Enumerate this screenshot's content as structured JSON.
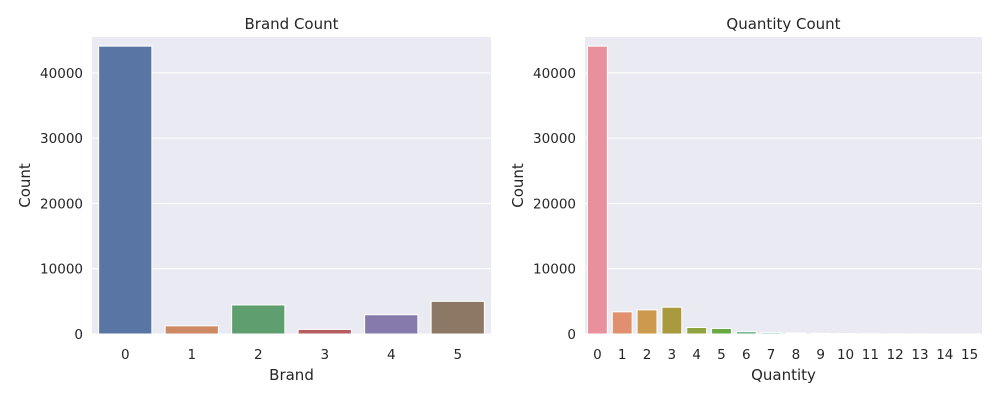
{
  "chart_data": [
    {
      "type": "bar",
      "title": "Brand Count",
      "xlabel": "Brand",
      "ylabel": "Count",
      "ylim": [
        0,
        45500
      ],
      "yticks": [
        0,
        10000,
        20000,
        30000,
        40000
      ],
      "grid": true,
      "categories": [
        "0",
        "1",
        "2",
        "3",
        "4",
        "5"
      ],
      "values": [
        44100,
        1250,
        4450,
        700,
        2950,
        5000
      ],
      "colors": [
        "#5975a4",
        "#cc8963",
        "#5f9e6e",
        "#b55d60",
        "#857aab",
        "#8d7866"
      ]
    },
    {
      "type": "bar",
      "title": "Quantity Count",
      "xlabel": "Quantity",
      "ylabel": "Count",
      "ylim": [
        0,
        45500
      ],
      "yticks": [
        0,
        10000,
        20000,
        30000,
        40000
      ],
      "grid": true,
      "categories": [
        "0",
        "1",
        "2",
        "3",
        "4",
        "5",
        "6",
        "7",
        "8",
        "9",
        "10",
        "11",
        "12",
        "13",
        "14",
        "15"
      ],
      "values": [
        44100,
        3400,
        3700,
        4100,
        1000,
        850,
        350,
        200,
        150,
        100,
        60,
        40,
        30,
        20,
        15,
        10
      ],
      "colors": [
        "#e8919c",
        "#e0906f",
        "#cc9a4e",
        "#a99a3d",
        "#8fa43f",
        "#6aa844",
        "#5aaa77",
        "#57a992",
        "#55a6a6",
        "#56a3ba",
        "#5e9fd1",
        "#8b96d9",
        "#ad8cd6",
        "#c785cc",
        "#d884b8",
        "#e186a6"
      ]
    }
  ]
}
